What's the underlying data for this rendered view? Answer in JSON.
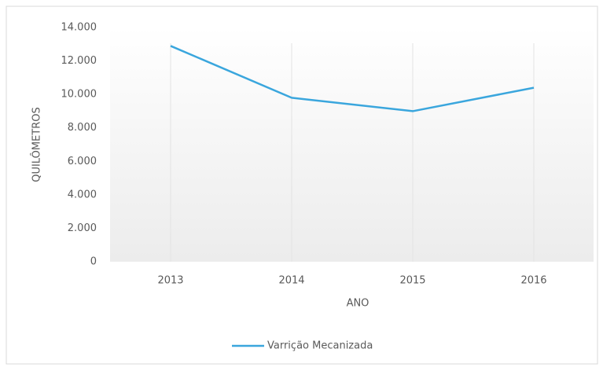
{
  "chart_data": {
    "type": "line",
    "x_label": "ANO",
    "y_label": "QUILÔMETROS",
    "categories": [
      "2013",
      "2014",
      "2015",
      "2016"
    ],
    "series": [
      {
        "name": "Varrição Mecanizada",
        "color": "#3aa6dd",
        "values": [
          12900,
          9800,
          9000,
          10400
        ]
      }
    ],
    "ylim": [
      0,
      14000
    ],
    "yticks": [
      0,
      {
        "value": 2000,
        "label": "2.000"
      },
      {
        "value": 4000,
        "label": "4.000"
      },
      {
        "value": 6000,
        "label": "6.000"
      },
      {
        "value": 8000,
        "label": "8.000"
      },
      {
        "value": 10000,
        "label": "10.000"
      },
      {
        "value": 12000,
        "label": "12.000"
      },
      {
        "value": 14000,
        "label": "14.000"
      }
    ],
    "legend": "bottom"
  }
}
